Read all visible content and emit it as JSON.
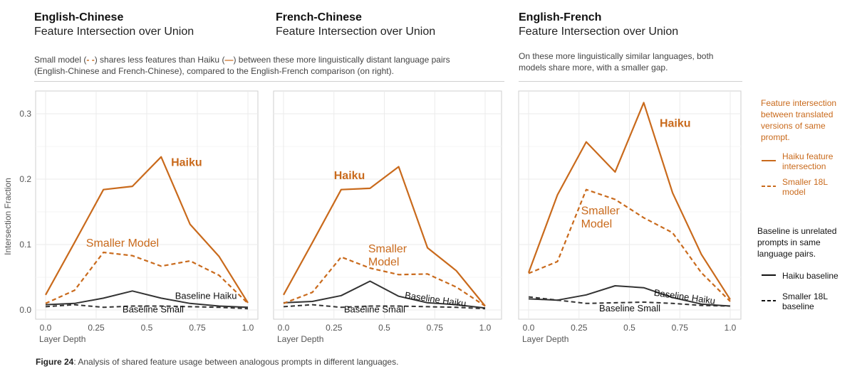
{
  "panels": [
    {
      "title": "English-Chinese",
      "subtitle": "Feature Intersection over Union"
    },
    {
      "title": "French-Chinese",
      "subtitle": "Feature Intersection over Union"
    },
    {
      "title": "English-French",
      "subtitle": "Feature Intersection over Union"
    }
  ],
  "description_left": {
    "p1": "Small model (",
    "small_glyph": "- -",
    "p2": ") shares less features than Haiku (",
    "haiku_glyph": "—",
    "p3": ") between these more linguistically distant language pairs",
    "line2": "(English-Chinese and French-Chinese), compared to the English-French comparison (on right)."
  },
  "description_right": {
    "line1": "On these more linguistically similar languages, both",
    "line2": "models share more, with a smaller gap."
  },
  "legend": {
    "orange_title": [
      "Feature intersection",
      "between translated",
      "versions of same",
      "prompt."
    ],
    "orange_items": [
      {
        "lines": [
          "Haiku feature",
          "intersection"
        ],
        "style": "solid"
      },
      {
        "lines": [
          "Smaller 18L",
          "model"
        ],
        "style": "dashed"
      }
    ],
    "black_title": [
      "Baseline is unrelated",
      "prompts in same",
      "language pairs."
    ],
    "black_items": [
      {
        "lines": [
          "Haiku baseline"
        ],
        "style": "solid"
      },
      {
        "lines": [
          "Smaller 18L",
          "baseline"
        ],
        "style": "dashed"
      }
    ]
  },
  "caption": {
    "label": "Figure 24",
    "text": ": Analysis of shared feature usage between analogous prompts in different languages."
  },
  "colors": {
    "haiku": "#c96a1c",
    "small": "#c96a1c",
    "baseline": "#333333"
  },
  "chart_data": [
    {
      "type": "line",
      "title": "English-Chinese",
      "subtitle": "Feature Intersection over Union",
      "xlabel": "Layer Depth",
      "ylabel": "Intersection Fraction",
      "xlim": [
        0,
        1
      ],
      "ylim": [
        0,
        0.33
      ],
      "xticks": [
        "0.0",
        "0.25",
        "0.5",
        "0.75",
        "1.0"
      ],
      "yticks": [
        "0.0",
        "0.1",
        "0.2",
        "0.3"
      ],
      "x": [
        0,
        0.143,
        0.286,
        0.429,
        0.571,
        0.714,
        0.857,
        1.0
      ],
      "series": [
        {
          "name": "Haiku",
          "style": "solid",
          "color": "orange",
          "values": [
            0.023,
            0.103,
            0.184,
            0.189,
            0.234,
            0.131,
            0.082,
            0.011
          ]
        },
        {
          "name": "Smaller Model",
          "style": "dashed",
          "color": "orange",
          "values": [
            0.01,
            0.03,
            0.088,
            0.083,
            0.067,
            0.075,
            0.053,
            0.01
          ]
        },
        {
          "name": "Baseline Haiku",
          "style": "solid",
          "color": "black",
          "values": [
            0.008,
            0.01,
            0.018,
            0.029,
            0.018,
            0.01,
            0.006,
            0.004
          ]
        },
        {
          "name": "Baseline Small",
          "style": "dashed",
          "color": "black",
          "values": [
            0.005,
            0.008,
            0.004,
            0.006,
            0.006,
            0.005,
            0.004,
            0.002
          ]
        }
      ],
      "annotations": [
        {
          "text": "Haiku",
          "x": 0.62,
          "y": 0.22,
          "color": "orange",
          "bold": true
        },
        {
          "text": "Smaller Model",
          "x": 0.2,
          "y": 0.097,
          "color": "orange",
          "bold": false
        },
        {
          "text": "Baseline Haiku",
          "x": 0.64,
          "y": 0.017,
          "color": "black",
          "bold": false
        },
        {
          "text": "Baseline Small",
          "x": 0.38,
          "y": -0.004,
          "color": "black",
          "bold": false
        }
      ]
    },
    {
      "type": "line",
      "title": "French-Chinese",
      "subtitle": "Feature Intersection over Union",
      "xlabel": "Layer Depth",
      "xlim": [
        0,
        1
      ],
      "ylim": [
        0,
        0.33
      ],
      "xticks": [
        "0.0",
        "0.25",
        "0.5",
        "0.75",
        "1.0"
      ],
      "x": [
        0,
        0.143,
        0.286,
        0.429,
        0.571,
        0.714,
        0.857,
        1.0
      ],
      "series": [
        {
          "name": "Haiku",
          "style": "solid",
          "color": "orange",
          "values": [
            0.023,
            0.103,
            0.184,
            0.186,
            0.219,
            0.095,
            0.06,
            0.006
          ]
        },
        {
          "name": "Smaller Model",
          "style": "dashed",
          "color": "orange",
          "values": [
            0.01,
            0.027,
            0.081,
            0.064,
            0.054,
            0.055,
            0.035,
            0.006
          ]
        },
        {
          "name": "Baseline Haiku",
          "style": "solid",
          "color": "black",
          "values": [
            0.011,
            0.013,
            0.022,
            0.044,
            0.021,
            0.011,
            0.008,
            0.003
          ]
        },
        {
          "name": "Baseline Small",
          "style": "dashed",
          "color": "black",
          "values": [
            0.005,
            0.008,
            0.004,
            0.006,
            0.006,
            0.005,
            0.004,
            0.002
          ]
        }
      ],
      "annotations": [
        {
          "text": "Haiku",
          "x": 0.25,
          "y": 0.2,
          "color": "orange",
          "bold": true
        },
        {
          "text": "Smaller",
          "x": 0.42,
          "y": 0.088,
          "color": "orange",
          "bold": false
        },
        {
          "text": "Model",
          "x": 0.42,
          "y": 0.068,
          "color": "orange",
          "bold": false
        },
        {
          "text": "Baseline Haiku",
          "x": 0.6,
          "y": 0.018,
          "color": "black",
          "bold": false
        },
        {
          "text": "Baseline Small",
          "x": 0.3,
          "y": -0.004,
          "color": "black",
          "bold": false
        }
      ]
    },
    {
      "type": "line",
      "title": "English-French",
      "subtitle": "Feature Intersection over Union",
      "xlabel": "Layer Depth",
      "xlim": [
        0,
        1
      ],
      "ylim": [
        0,
        0.33
      ],
      "xticks": [
        "0.0",
        "0.25",
        "0.5",
        "0.75",
        "1.0"
      ],
      "x": [
        0,
        0.143,
        0.286,
        0.429,
        0.571,
        0.714,
        0.857,
        1.0
      ],
      "series": [
        {
          "name": "Haiku",
          "style": "solid",
          "color": "orange",
          "values": [
            0.057,
            0.176,
            0.257,
            0.211,
            0.317,
            0.179,
            0.085,
            0.016
          ]
        },
        {
          "name": "Smaller Model",
          "style": "dashed",
          "color": "orange",
          "values": [
            0.056,
            0.074,
            0.184,
            0.169,
            0.141,
            0.118,
            0.057,
            0.013
          ]
        },
        {
          "name": "Baseline Haiku",
          "style": "solid",
          "color": "black",
          "values": [
            0.017,
            0.015,
            0.023,
            0.037,
            0.034,
            0.019,
            0.009,
            0.006
          ]
        },
        {
          "name": "Baseline Small",
          "style": "dashed",
          "color": "black",
          "values": [
            0.02,
            0.015,
            0.01,
            0.011,
            0.012,
            0.01,
            0.007,
            0.006
          ]
        }
      ],
      "annotations": [
        {
          "text": "Haiku",
          "x": 0.65,
          "y": 0.28,
          "color": "orange",
          "bold": true
        },
        {
          "text": "Smaller",
          "x": 0.26,
          "y": 0.146,
          "color": "orange",
          "bold": false
        },
        {
          "text": "Model",
          "x": 0.26,
          "y": 0.126,
          "color": "orange",
          "bold": false
        },
        {
          "text": "Baseline Haiku",
          "x": 0.62,
          "y": 0.022,
          "color": "black",
          "bold": false
        },
        {
          "text": "Baseline Small",
          "x": 0.35,
          "y": -0.002,
          "color": "black",
          "bold": false
        }
      ]
    }
  ]
}
